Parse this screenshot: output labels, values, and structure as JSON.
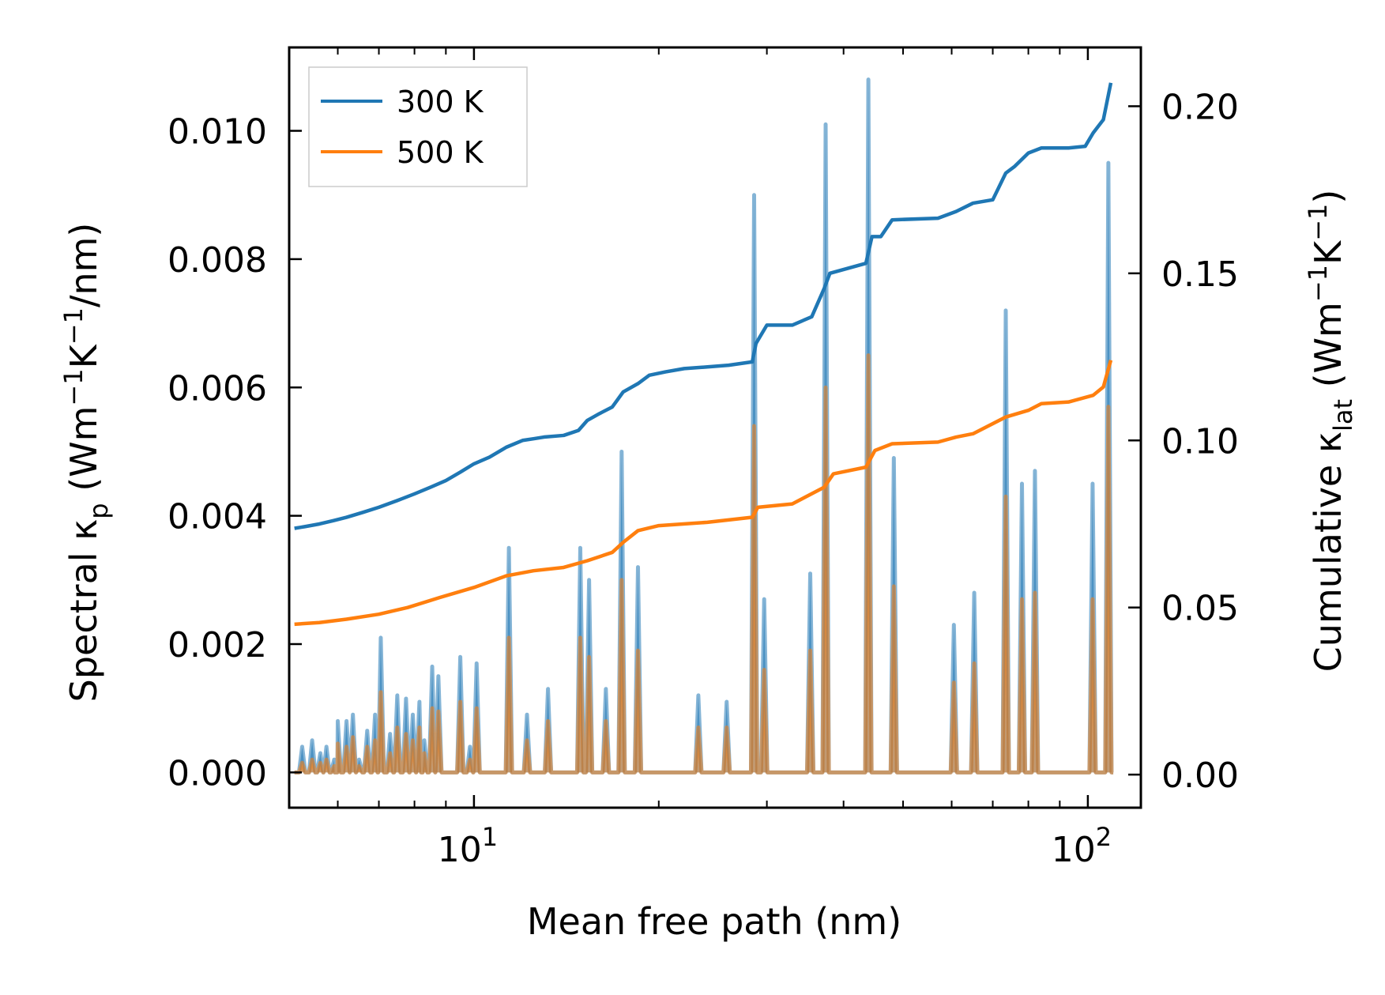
{
  "chart_data": {
    "type": "line",
    "title": "",
    "xlabel": "Mean free path (nm)",
    "ylabel_left": {
      "prefix": "Spectral κ",
      "sub": "p",
      "unit_open": " (Wm",
      "exp1": "−1",
      "mid": "K",
      "exp2": "−1",
      "unit_close": "/nm)"
    },
    "ylabel_right": {
      "prefix": "Cumulative κ",
      "sub": "lat",
      "unit_open": " (Wm",
      "exp1": "−1",
      "mid": "K",
      "exp2": "−1",
      "unit_close": ")"
    },
    "xscale": "log",
    "xlim": [
      5,
      122
    ],
    "ylim_left": [
      -0.00055,
      0.0113
    ],
    "ylim_right": [
      -0.0099,
      0.2176
    ],
    "xticks": [
      {
        "value": 10,
        "base": "10",
        "exp": "1"
      },
      {
        "value": 100,
        "base": "10",
        "exp": "2"
      }
    ],
    "yticks_left": [
      {
        "value": 0.0,
        "label": "0.000"
      },
      {
        "value": 0.002,
        "label": "0.002"
      },
      {
        "value": 0.004,
        "label": "0.004"
      },
      {
        "value": 0.006,
        "label": "0.006"
      },
      {
        "value": 0.008,
        "label": "0.008"
      },
      {
        "value": 0.01,
        "label": "0.010"
      }
    ],
    "yticks_right": [
      {
        "value": 0.0,
        "label": "0.00"
      },
      {
        "value": 0.05,
        "label": "0.05"
      },
      {
        "value": 0.1,
        "label": "0.10"
      },
      {
        "value": 0.15,
        "label": "0.15"
      },
      {
        "value": 0.2,
        "label": "0.20"
      }
    ],
    "legend": {
      "position": "upper-left",
      "entries": [
        {
          "label": "300 K",
          "color": "#1f77b4"
        },
        {
          "label": "500 K",
          "color": "#ff7f0e"
        }
      ]
    },
    "colors": {
      "k300": "#1f77b4",
      "k500": "#ff7f0e",
      "axis": "#000000",
      "legend_border": "#cccccc"
    },
    "spectral_series": [
      {
        "name": "300 K",
        "axis": "left",
        "peaks": [
          [
            5.25,
            0.0004
          ],
          [
            5.45,
            0.0005
          ],
          [
            5.62,
            0.0003
          ],
          [
            5.75,
            0.0004
          ],
          [
            5.92,
            0.0002
          ],
          [
            6.0,
            0.0008
          ],
          [
            6.2,
            0.0008
          ],
          [
            6.35,
            0.0009
          ],
          [
            6.5,
            0.0002
          ],
          [
            6.7,
            0.00065
          ],
          [
            6.9,
            0.0009
          ],
          [
            7.05,
            0.0021
          ],
          [
            7.3,
            0.0006
          ],
          [
            7.5,
            0.0012
          ],
          [
            7.75,
            0.00115
          ],
          [
            7.95,
            0.0009
          ],
          [
            8.15,
            0.0011
          ],
          [
            8.3,
            0.0005
          ],
          [
            8.55,
            0.00165
          ],
          [
            8.75,
            0.0015
          ],
          [
            9.5,
            0.0018
          ],
          [
            9.85,
            0.0004
          ],
          [
            10.1,
            0.0017
          ],
          [
            11.4,
            0.0035
          ],
          [
            12.2,
            0.0009
          ],
          [
            13.2,
            0.0013
          ],
          [
            14.9,
            0.0035
          ],
          [
            15.4,
            0.003
          ],
          [
            16.4,
            0.0013
          ],
          [
            17.4,
            0.005
          ],
          [
            18.5,
            0.0032
          ],
          [
            23.2,
            0.0012
          ],
          [
            25.8,
            0.0011
          ],
          [
            28.6,
            0.009
          ],
          [
            29.7,
            0.0027
          ],
          [
            35.3,
            0.0031
          ],
          [
            37.4,
            0.0101
          ],
          [
            43.9,
            0.0108
          ],
          [
            48.3,
            0.0049
          ],
          [
            60.5,
            0.0023
          ],
          [
            65.3,
            0.0028
          ],
          [
            73.5,
            0.0072
          ],
          [
            78.1,
            0.0045
          ],
          [
            82.0,
            0.0047
          ],
          [
            101.8,
            0.0045
          ],
          [
            108.0,
            0.0095
          ]
        ]
      },
      {
        "name": "500 K",
        "axis": "left",
        "peaks": [
          [
            5.25,
            0.00015
          ],
          [
            5.45,
            0.0002
          ],
          [
            5.62,
            0.00015
          ],
          [
            5.75,
            0.0002
          ],
          [
            5.92,
            0.0001
          ],
          [
            6.0,
            0.00045
          ],
          [
            6.2,
            0.0004
          ],
          [
            6.35,
            0.00055
          ],
          [
            6.5,
            0.0001
          ],
          [
            6.7,
            0.0004
          ],
          [
            6.9,
            0.0005
          ],
          [
            7.05,
            0.00125
          ],
          [
            7.3,
            0.0003
          ],
          [
            7.5,
            0.0007
          ],
          [
            7.75,
            0.0006
          ],
          [
            7.95,
            0.0005
          ],
          [
            8.15,
            0.0007
          ],
          [
            8.3,
            0.0003
          ],
          [
            8.55,
            0.001
          ],
          [
            8.75,
            0.00095
          ],
          [
            9.5,
            0.0011
          ],
          [
            9.85,
            0.0002
          ],
          [
            10.1,
            0.001
          ],
          [
            11.4,
            0.0021
          ],
          [
            12.2,
            0.0005
          ],
          [
            13.2,
            0.0008
          ],
          [
            14.9,
            0.0021
          ],
          [
            15.4,
            0.0018
          ],
          [
            16.4,
            0.0008
          ],
          [
            17.4,
            0.003
          ],
          [
            18.5,
            0.0019
          ],
          [
            23.2,
            0.0007
          ],
          [
            25.8,
            0.0007
          ],
          [
            28.6,
            0.0054
          ],
          [
            29.7,
            0.0016
          ],
          [
            35.3,
            0.0019
          ],
          [
            37.4,
            0.006
          ],
          [
            43.9,
            0.0065
          ],
          [
            48.3,
            0.0029
          ],
          [
            60.5,
            0.0014
          ],
          [
            65.3,
            0.0017
          ],
          [
            73.5,
            0.0043
          ],
          [
            78.1,
            0.0027
          ],
          [
            82.0,
            0.0028
          ],
          [
            101.8,
            0.0027
          ],
          [
            108.0,
            0.0057
          ]
        ]
      }
    ],
    "cumulative_series": [
      {
        "name": "300 K",
        "axis": "right",
        "points": [
          [
            5.1,
            0.0737
          ],
          [
            5.3,
            0.0742
          ],
          [
            5.6,
            0.075
          ],
          [
            5.9,
            0.076
          ],
          [
            6.2,
            0.077
          ],
          [
            6.6,
            0.0785
          ],
          [
            7.0,
            0.08
          ],
          [
            7.5,
            0.082
          ],
          [
            8.0,
            0.084
          ],
          [
            8.5,
            0.086
          ],
          [
            9.0,
            0.088
          ],
          [
            9.5,
            0.0905
          ],
          [
            10.0,
            0.093
          ],
          [
            10.6,
            0.095
          ],
          [
            11.3,
            0.098
          ],
          [
            12.0,
            0.1
          ],
          [
            12.5,
            0.1005
          ],
          [
            13.0,
            0.101
          ],
          [
            14.0,
            0.1015
          ],
          [
            14.8,
            0.103
          ],
          [
            15.3,
            0.106
          ],
          [
            16.0,
            0.108
          ],
          [
            16.8,
            0.11
          ],
          [
            17.5,
            0.1145
          ],
          [
            18.5,
            0.117
          ],
          [
            19.3,
            0.1195
          ],
          [
            20.5,
            0.1205
          ],
          [
            22.0,
            0.1215
          ],
          [
            24.0,
            0.122
          ],
          [
            26.0,
            0.1225
          ],
          [
            28.4,
            0.1235
          ],
          [
            28.8,
            0.129
          ],
          [
            30.0,
            0.1345
          ],
          [
            33.0,
            0.1345
          ],
          [
            35.5,
            0.137
          ],
          [
            37.2,
            0.1455
          ],
          [
            38.0,
            0.15
          ],
          [
            43.5,
            0.153
          ],
          [
            44.5,
            0.161
          ],
          [
            46.0,
            0.161
          ],
          [
            48.0,
            0.166
          ],
          [
            57.0,
            0.1665
          ],
          [
            61.0,
            0.1685
          ],
          [
            65.0,
            0.171
          ],
          [
            70.0,
            0.172
          ],
          [
            73.5,
            0.18
          ],
          [
            76.0,
            0.182
          ],
          [
            80.0,
            0.186
          ],
          [
            84.0,
            0.1875
          ],
          [
            93.0,
            0.1875
          ],
          [
            99.0,
            0.188
          ],
          [
            102.0,
            0.192
          ],
          [
            106.0,
            0.196
          ],
          [
            109.0,
            0.207
          ]
        ]
      },
      {
        "name": "500 K",
        "axis": "right",
        "points": [
          [
            5.1,
            0.045
          ],
          [
            5.6,
            0.0455
          ],
          [
            6.2,
            0.0465
          ],
          [
            7.0,
            0.048
          ],
          [
            7.8,
            0.05
          ],
          [
            8.8,
            0.053
          ],
          [
            10.0,
            0.056
          ],
          [
            11.3,
            0.0595
          ],
          [
            12.5,
            0.061
          ],
          [
            14.0,
            0.062
          ],
          [
            15.3,
            0.064
          ],
          [
            16.8,
            0.0665
          ],
          [
            17.5,
            0.0695
          ],
          [
            18.5,
            0.073
          ],
          [
            20.0,
            0.0745
          ],
          [
            24.0,
            0.0755
          ],
          [
            28.4,
            0.077
          ],
          [
            29.0,
            0.08
          ],
          [
            33.0,
            0.081
          ],
          [
            37.2,
            0.086
          ],
          [
            38.5,
            0.09
          ],
          [
            43.5,
            0.092
          ],
          [
            45.0,
            0.097
          ],
          [
            48.0,
            0.099
          ],
          [
            57.0,
            0.0995
          ],
          [
            61.0,
            0.101
          ],
          [
            65.0,
            0.102
          ],
          [
            73.5,
            0.107
          ],
          [
            80.0,
            0.109
          ],
          [
            84.0,
            0.111
          ],
          [
            93.0,
            0.1115
          ],
          [
            102.0,
            0.1135
          ],
          [
            106.0,
            0.116
          ],
          [
            109.0,
            0.124
          ]
        ]
      }
    ]
  }
}
